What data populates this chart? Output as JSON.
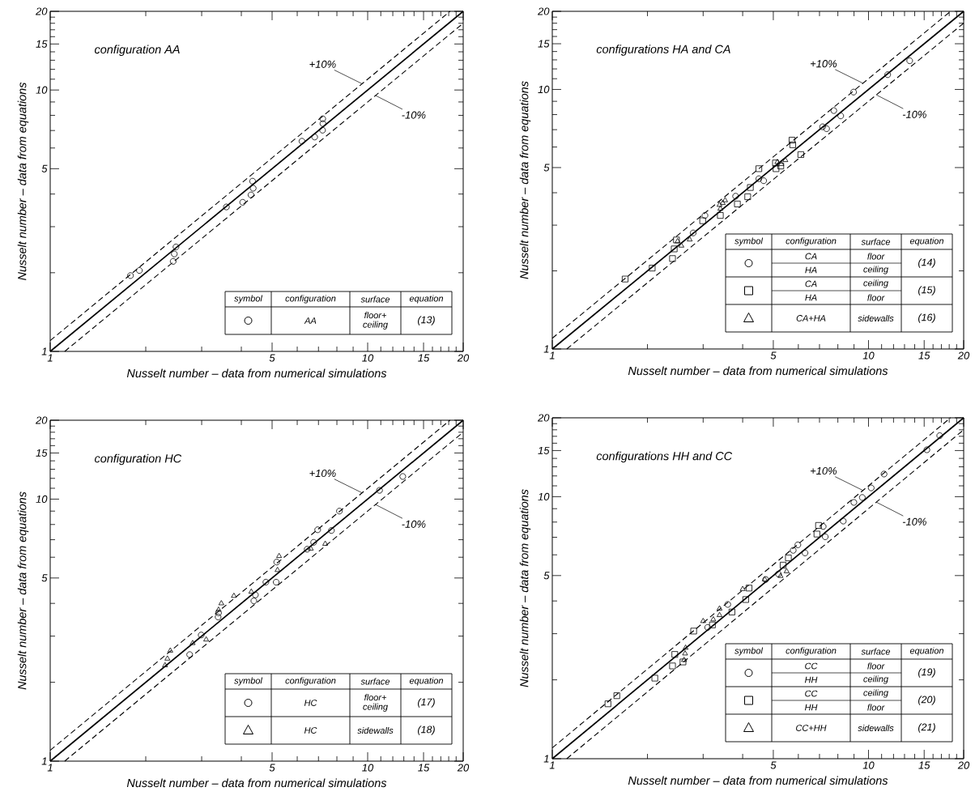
{
  "chart_data": [
    {
      "type": "scatter",
      "title": "configuration AA",
      "xlabel": "Nusselt number – data from numerical simulations",
      "ylabel": "Nusselt number – data from equations",
      "log": "xy",
      "xlim": [
        1,
        20
      ],
      "ylim": [
        1,
        20
      ],
      "legend": "top right",
      "xticks": [
        1,
        {
          "value": 2,
          "label": null
        },
        {
          "value": 3,
          "label": null
        },
        {
          "value": 4,
          "label": null
        },
        5,
        {
          "value": 6,
          "label": null
        },
        {
          "value": 7,
          "label": null
        },
        {
          "value": 8,
          "label": null
        },
        {
          "value": 9,
          "label": null
        },
        10,
        {
          "value": 11,
          "label": null
        },
        {
          "value": 12,
          "label": null
        },
        {
          "value": 13,
          "label": null
        },
        {
          "value": 14,
          "label": null
        },
        15,
        {
          "value": 16,
          "label": null
        },
        {
          "value": 17,
          "label": null
        },
        {
          "value": 18,
          "label": null
        },
        {
          "value": 19,
          "label": null
        },
        20
      ],
      "yticks": [
        1,
        {
          "value": 2,
          "label": null
        },
        {
          "value": 3,
          "label": null
        },
        {
          "value": 4,
          "label": null
        },
        5,
        {
          "value": 6,
          "label": null
        },
        {
          "value": 7,
          "label": null
        },
        {
          "value": 8,
          "label": null
        },
        {
          "value": 9,
          "label": null
        },
        10,
        {
          "value": 11,
          "label": null
        },
        {
          "value": 12,
          "label": null
        },
        {
          "value": 13,
          "label": null
        },
        {
          "value": 14,
          "label": null
        },
        15,
        {
          "value": 16,
          "label": null
        },
        {
          "value": 17,
          "label": null
        },
        {
          "value": 18,
          "label": null
        },
        {
          "value": 19,
          "label": null
        },
        20
      ],
      "annotations": [
        "symbol",
        "configuration",
        "surface",
        "equation",
        "AA",
        "floor+ ceiling",
        "(13)"
      ],
      "series": [
        {
          "color": "#000000",
          "marker": "circle",
          "x": [
            1.79,
            1.91,
            2.44,
            2.46,
            2.49,
            3.59,
            4.04,
            4.29,
            4.36,
            4.34,
            6.21,
            6.81,
            7.21,
            7.23,
            7.22
          ],
          "values": [
            1.95,
            2.04,
            2.21,
            2.36,
            2.51,
            3.57,
            3.72,
            3.97,
            4.21,
            4.48,
            6.37,
            6.61,
            7.02,
            7.44,
            7.76
          ]
        },
        {
          "type": "line",
          "color": "#000000",
          "line_style": "solid",
          "x": [
            1,
            20
          ],
          "values": [
            1,
            20
          ]
        },
        {
          "type": "line",
          "name": "+10%",
          "color": "#000000",
          "line_style": "dashed",
          "x": [
            1,
            18.18
          ],
          "values": [
            1.1,
            20
          ]
        },
        {
          "type": "line",
          "name": "-10%",
          "color": "#000000",
          "line_style": "dashed",
          "x": [
            1.111,
            20
          ],
          "values": [
            1,
            18
          ]
        }
      ]
    },
    {
      "type": "scatter",
      "title": "configurations HA and CA",
      "xlabel": "Nusselt number – data from numerical simulations",
      "ylabel": "Nusselt number – data from equations",
      "log": "xy",
      "xlim": [
        1,
        20
      ],
      "ylim": [
        1,
        20
      ],
      "legend": "top right",
      "xticks": [
        1,
        {
          "value": 2,
          "label": null
        },
        {
          "value": 3,
          "label": null
        },
        {
          "value": 4,
          "label": null
        },
        5,
        {
          "value": 6,
          "label": null
        },
        {
          "value": 7,
          "label": null
        },
        {
          "value": 8,
          "label": null
        },
        {
          "value": 9,
          "label": null
        },
        10,
        {
          "value": 11,
          "label": null
        },
        {
          "value": 12,
          "label": null
        },
        {
          "value": 13,
          "label": null
        },
        {
          "value": 14,
          "label": null
        },
        15,
        {
          "value": 16,
          "label": null
        },
        {
          "value": 17,
          "label": null
        },
        {
          "value": 18,
          "label": null
        },
        {
          "value": 19,
          "label": null
        },
        20
      ],
      "yticks": [
        1,
        {
          "value": 2,
          "label": null
        },
        {
          "value": 3,
          "label": null
        },
        {
          "value": 4,
          "label": null
        },
        5,
        {
          "value": 6,
          "label": null
        },
        {
          "value": 7,
          "label": null
        },
        {
          "value": 8,
          "label": null
        },
        {
          "value": 9,
          "label": null
        },
        10,
        {
          "value": 11,
          "label": null
        },
        {
          "value": 12,
          "label": null
        },
        {
          "value": 13,
          "label": null
        },
        {
          "value": 14,
          "label": null
        },
        15,
        {
          "value": 16,
          "label": null
        },
        {
          "value": 17,
          "label": null
        },
        {
          "value": 18,
          "label": null
        },
        {
          "value": 19,
          "label": null
        },
        20
      ],
      "annotations": [
        "symbol",
        "configuration",
        "surface",
        "equation",
        "CA",
        "floor",
        "HA",
        "ceiling",
        "(14)",
        "CA",
        "ceiling",
        "HA",
        "floor",
        "(15)",
        "CA+HA",
        "sidewalls",
        "(16)"
      ],
      "series": [
        {
          "color": "#000000",
          "marker": "circle",
          "x": [
            13.5,
            11.5,
            8.97,
            7.77,
            8.17,
            7.16,
            7.37,
            4.5,
            4.66,
            3.8,
            3.04,
            2.79
          ],
          "values": [
            12.9,
            11.4,
            9.77,
            8.29,
            7.91,
            7.18,
            7.06,
            4.53,
            4.45,
            3.88,
            3.27,
            2.8
          ]
        },
        {
          "color": "#000000",
          "marker": "square",
          "x": [
            1.7,
            2.07,
            2.4,
            2.43,
            2.47,
            2.99,
            3.4,
            3.85,
            4.15,
            4.23,
            4.5,
            5.08,
            5.1,
            5.28,
            5.73,
            5.76,
            6.11
          ],
          "values": [
            1.86,
            2.05,
            2.23,
            2.43,
            2.63,
            3.12,
            3.27,
            3.62,
            3.86,
            4.19,
            4.95,
            5.21,
            4.95,
            5.07,
            6.38,
            6.12,
            5.61
          ]
        },
        {
          "color": "#000000",
          "marker": "triangle",
          "x": [
            2.49,
            2.56,
            2.72,
            3.4,
            3.46,
            3.52,
            3.38,
            5.15,
            5.3,
            5.46
          ],
          "values": [
            2.6,
            2.5,
            2.64,
            3.47,
            3.65,
            3.74,
            3.59,
            5.25,
            5.16,
            5.34
          ]
        },
        {
          "type": "line",
          "color": "#000000",
          "line_style": "solid",
          "x": [
            1,
            20
          ],
          "values": [
            1,
            20
          ]
        },
        {
          "type": "line",
          "name": "+10%",
          "color": "#000000",
          "line_style": "dashed",
          "x": [
            1,
            18.18
          ],
          "values": [
            1.1,
            20
          ]
        },
        {
          "type": "line",
          "name": "-10%",
          "color": "#000000",
          "line_style": "dashed",
          "x": [
            1.111,
            20
          ],
          "values": [
            1,
            18
          ]
        }
      ]
    },
    {
      "type": "scatter",
      "title": "configuration HC",
      "xlabel": "Nusselt number – data from numerical simulations",
      "ylabel": "Nusselt number – data from equations",
      "log": "xy",
      "xlim": [
        1,
        20
      ],
      "ylim": [
        1,
        20
      ],
      "legend": "top right",
      "xticks": [
        1,
        {
          "value": 2,
          "label": null
        },
        {
          "value": 3,
          "label": null
        },
        {
          "value": 4,
          "label": null
        },
        5,
        {
          "value": 6,
          "label": null
        },
        {
          "value": 7,
          "label": null
        },
        {
          "value": 8,
          "label": null
        },
        {
          "value": 9,
          "label": null
        },
        10,
        {
          "value": 11,
          "label": null
        },
        {
          "value": 12,
          "label": null
        },
        {
          "value": 13,
          "label": null
        },
        {
          "value": 14,
          "label": null
        },
        15,
        {
          "value": 16,
          "label": null
        },
        {
          "value": 17,
          "label": null
        },
        {
          "value": 18,
          "label": null
        },
        {
          "value": 19,
          "label": null
        },
        20
      ],
      "yticks": [
        1,
        {
          "value": 2,
          "label": null
        },
        {
          "value": 3,
          "label": null
        },
        {
          "value": 4,
          "label": null
        },
        5,
        {
          "value": 6,
          "label": null
        },
        {
          "value": 7,
          "label": null
        },
        {
          "value": 8,
          "label": null
        },
        {
          "value": 9,
          "label": null
        },
        10,
        {
          "value": 11,
          "label": null
        },
        {
          "value": 12,
          "label": null
        },
        {
          "value": 13,
          "label": null
        },
        {
          "value": 14,
          "label": null
        },
        15,
        {
          "value": 16,
          "label": null
        },
        {
          "value": 17,
          "label": null
        },
        {
          "value": 18,
          "label": null
        },
        {
          "value": 19,
          "label": null
        },
        20
      ],
      "annotations": [
        "symbol",
        "configuration",
        "surface",
        "equation",
        "HC",
        "floor+ ceiling",
        "(17)",
        "HC",
        "sidewalls",
        "(18)"
      ],
      "series": [
        {
          "color": "#000000",
          "marker": "circle",
          "x": [
            12.9,
            10.9,
            8.15,
            6.96,
            7.69,
            6.76,
            6.45,
            5.17,
            4.78,
            5.15,
            4.43,
            4.38,
            3.39,
            3.38,
            2.99,
            2.75
          ],
          "values": [
            12.2,
            10.8,
            9.0,
            7.64,
            7.59,
            6.84,
            6.44,
            5.75,
            4.82,
            4.82,
            4.31,
            4.09,
            3.68,
            3.55,
            3.03,
            2.55
          ]
        },
        {
          "color": "#000000",
          "marker": "triangle",
          "x": [
            2.3,
            2.34,
            2.39,
            2.81,
            3.1,
            3.39,
            3.46,
            3.79,
            4.3,
            5.2,
            5.26,
            6.62,
            7.35
          ],
          "values": [
            2.32,
            2.46,
            2.64,
            2.82,
            2.91,
            3.78,
            4.0,
            4.27,
            4.43,
            5.36,
            6.06,
            6.47,
            6.75
          ]
        },
        {
          "type": "line",
          "color": "#000000",
          "line_style": "solid",
          "x": [
            1,
            20
          ],
          "values": [
            1,
            20
          ]
        },
        {
          "type": "line",
          "name": "+10%",
          "color": "#000000",
          "line_style": "dashed",
          "x": [
            1,
            18.18
          ],
          "values": [
            1.1,
            20
          ]
        },
        {
          "type": "line",
          "name": "-10%",
          "color": "#000000",
          "line_style": "dashed",
          "x": [
            1.111,
            20
          ],
          "values": [
            1,
            18
          ]
        }
      ]
    },
    {
      "type": "scatter",
      "title": "configurations HH and CC",
      "xlabel": "Nusselt number – data from numerical simulations",
      "ylabel": "Nusselt number – data from equations",
      "log": "xy",
      "xlim": [
        1,
        20
      ],
      "ylim": [
        1,
        20
      ],
      "legend": "top right",
      "xticks": [
        1,
        {
          "value": 2,
          "label": null
        },
        {
          "value": 3,
          "label": null
        },
        {
          "value": 4,
          "label": null
        },
        5,
        {
          "value": 6,
          "label": null
        },
        {
          "value": 7,
          "label": null
        },
        {
          "value": 8,
          "label": null
        },
        {
          "value": 9,
          "label": null
        },
        10,
        {
          "value": 11,
          "label": null
        },
        {
          "value": 12,
          "label": null
        },
        {
          "value": 13,
          "label": null
        },
        {
          "value": 14,
          "label": null
        },
        15,
        {
          "value": 16,
          "label": null
        },
        {
          "value": 17,
          "label": null
        },
        {
          "value": 18,
          "label": null
        },
        {
          "value": 19,
          "label": null
        },
        20
      ],
      "yticks": [
        1,
        {
          "value": 2,
          "label": null
        },
        {
          "value": 3,
          "label": null
        },
        {
          "value": 4,
          "label": null
        },
        5,
        {
          "value": 6,
          "label": null
        },
        {
          "value": 7,
          "label": null
        },
        {
          "value": 8,
          "label": null
        },
        {
          "value": 9,
          "label": null
        },
        10,
        {
          "value": 11,
          "label": null
        },
        {
          "value": 12,
          "label": null
        },
        {
          "value": 13,
          "label": null
        },
        {
          "value": 14,
          "label": null
        },
        15,
        {
          "value": 16,
          "label": null
        },
        {
          "value": 17,
          "label": null
        },
        {
          "value": 18,
          "label": null
        },
        {
          "value": 19,
          "label": null
        },
        20
      ],
      "annotations": [
        "symbol",
        "configuration",
        "surface",
        "equation",
        "CC",
        "floor",
        "HH",
        "ceiling",
        "(19)",
        "CC",
        "ceiling",
        "HH",
        "floor",
        "(20)",
        "CC+HH",
        "sidewalls",
        "(21)"
      ],
      "series": [
        {
          "color": "#000000",
          "marker": "circle",
          "x": [
            16.8,
            15.3,
            11.2,
            10.2,
            9.56,
            8.99,
            8.32,
            7.19,
            7.3,
            5.98,
            5.78,
            6.3,
            5.19,
            4.73,
            3.59,
            3.1
          ],
          "values": [
            17.1,
            15.1,
            12.2,
            10.8,
            9.93,
            9.51,
            8.07,
            7.7,
            7.03,
            6.55,
            6.24,
            6.1,
            5.07,
            4.83,
            3.88,
            3.17
          ]
        },
        {
          "color": "#000000",
          "marker": "square",
          "x": [
            1.5,
            1.6,
            2.11,
            2.4,
            2.44,
            2.59,
            2.8,
            3.21,
            3.7,
            4.09,
            4.19,
            5.37,
            5.58,
            6.87,
            6.95
          ],
          "values": [
            1.62,
            1.74,
            2.03,
            2.26,
            2.5,
            2.34,
            3.07,
            3.24,
            3.63,
            4.05,
            4.48,
            5.48,
            5.84,
            7.2,
            7.77
          ]
        },
        {
          "color": "#000000",
          "marker": "triangle",
          "x": [
            2.61,
            2.63,
            2.64,
            3.0,
            3.23,
            3.38,
            3.38,
            4.0,
            4.7,
            5.27,
            5.51
          ],
          "values": [
            2.38,
            2.52,
            2.65,
            3.35,
            3.4,
            3.53,
            3.74,
            4.44,
            4.83,
            4.98,
            5.19
          ]
        },
        {
          "type": "line",
          "color": "#000000",
          "line_style": "solid",
          "x": [
            1,
            20
          ],
          "values": [
            1,
            20
          ]
        },
        {
          "type": "line",
          "name": "+10%",
          "color": "#000000",
          "line_style": "dashed",
          "x": [
            1,
            18.18
          ],
          "values": [
            1.1,
            20
          ]
        },
        {
          "type": "line",
          "name": "-10%",
          "color": "#000000",
          "line_style": "dashed",
          "x": [
            1.111,
            20
          ],
          "values": [
            1,
            18
          ]
        }
      ]
    }
  ]
}
